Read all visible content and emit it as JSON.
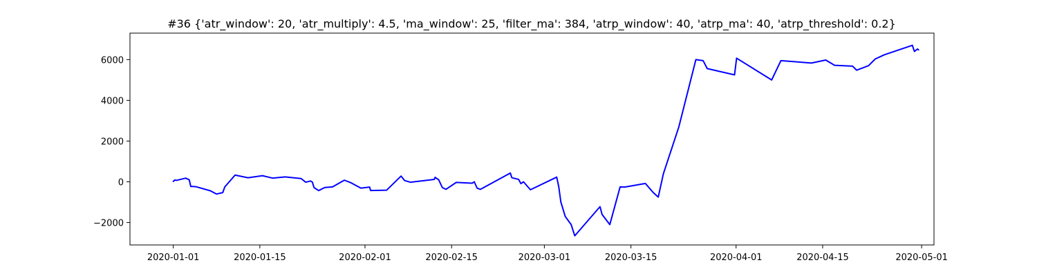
{
  "chart_data": {
    "type": "line",
    "title": "#36 {'atr_window': 20, 'atr_multiply': 4.5, 'ma_window': 25, 'filter_ma': 384, 'atrp_window': 40, 'atrp_ma': 40, 'atrp_threshold': 0.2}",
    "xlabel": "",
    "ylabel": "",
    "xlim": [
      "2019-12-25",
      "2020-05-03"
    ],
    "ylim": [
      -3100,
      7300
    ],
    "grid": false,
    "legend": "none",
    "xticks": [
      {
        "value": "2020-01-01",
        "label": "2020-01-01"
      },
      {
        "value": "2020-01-15",
        "label": "2020-01-15"
      },
      {
        "value": "2020-02-01",
        "label": "2020-02-01"
      },
      {
        "value": "2020-02-15",
        "label": "2020-02-15"
      },
      {
        "value": "2020-03-01",
        "label": "2020-03-01"
      },
      {
        "value": "2020-03-15",
        "label": "2020-03-15"
      },
      {
        "value": "2020-04-01",
        "label": "2020-04-01"
      },
      {
        "value": "2020-04-15",
        "label": "2020-04-15"
      },
      {
        "value": "2020-05-01",
        "label": "2020-05-01"
      }
    ],
    "yticks": [
      {
        "value": -2000,
        "label": "−2000"
      },
      {
        "value": 0,
        "label": "0"
      },
      {
        "value": 2000,
        "label": "2000"
      },
      {
        "value": 4000,
        "label": "4000"
      },
      {
        "value": 6000,
        "label": "6000"
      }
    ],
    "series": [
      {
        "color": "#0000ff",
        "x": [
          "2020-01-01 00:00",
          "2020-01-01 06:00",
          "2020-01-01 12:00",
          "2020-01-03 00:00",
          "2020-01-03 14:00",
          "2020-01-03 20:00",
          "2020-01-04 04:00",
          "2020-01-04 16:00",
          "2020-01-07 00:00",
          "2020-01-08 00:00",
          "2020-01-09 00:00",
          "2020-01-09 08:00",
          "2020-01-11 00:00",
          "2020-01-13 02:00",
          "2020-01-15 10:00",
          "2020-01-17 02:00",
          "2020-01-19 02:00",
          "2020-01-21 16:00",
          "2020-01-22 10:00",
          "2020-01-23 05:00",
          "2020-01-23 12:00",
          "2020-01-23 18:00",
          "2020-01-24 12:00",
          "2020-01-25 12:00",
          "2020-01-26 18:00",
          "2020-01-28 16:00",
          "2020-01-29 18:00",
          "2020-01-31 08:00",
          "2020-02-01 18:00",
          "2020-02-01 22:00",
          "2020-02-04 12:00",
          "2020-02-06 20:00",
          "2020-02-07 10:00",
          "2020-02-08 08:00",
          "2020-02-12 05:00",
          "2020-02-12 08:00",
          "2020-02-12 22:00",
          "2020-02-13 12:00",
          "2020-02-14 02:00",
          "2020-02-15 18:00",
          "2020-02-18 08:00",
          "2020-02-18 16:00",
          "2020-02-19 03:00",
          "2020-02-19 16:00",
          "2020-02-24 12:00",
          "2020-02-24 18:00",
          "2020-02-25 20:00",
          "2020-02-26 05:00",
          "2020-02-26 15:00",
          "2020-02-27 18:00",
          "2020-03-03 00:00",
          "2020-03-03 08:00",
          "2020-03-03 16:00",
          "2020-03-04 09:00",
          "2020-03-05 08:00",
          "2020-03-05 22:00",
          "2020-03-10 00:00",
          "2020-03-10 08:00",
          "2020-03-11 14:00",
          "2020-03-13 06:00",
          "2020-03-14 00:00",
          "2020-03-17 08:00",
          "2020-03-18 14:00",
          "2020-03-19 10:00",
          "2020-03-20 06:00",
          "2020-03-22 18:00",
          "2020-03-25 12:00",
          "2020-03-26 16:00",
          "2020-03-27 08:00",
          "2020-03-31 18:00",
          "2020-04-01 02:00",
          "2020-04-06 18:00",
          "2020-04-08 06:00",
          "2020-04-13 04:00",
          "2020-04-15 12:00",
          "2020-04-16 22:00",
          "2020-04-19 20:00",
          "2020-04-20 12:00",
          "2020-04-22 10:00",
          "2020-04-23 12:00",
          "2020-04-25 00:00",
          "2020-04-29 12:00",
          "2020-04-29 20:00",
          "2020-04-30 08:00",
          "2020-04-30 12:00"
        ],
        "y": [
          20,
          90,
          70,
          180,
          100,
          -230,
          -230,
          -240,
          -440,
          -600,
          -530,
          -250,
          330,
          200,
          300,
          180,
          240,
          160,
          -20,
          40,
          -20,
          -280,
          -430,
          -280,
          -250,
          80,
          -50,
          -310,
          -260,
          -430,
          -410,
          280,
          60,
          -20,
          120,
          220,
          100,
          -280,
          -370,
          -30,
          -70,
          0,
          -310,
          -370,
          430,
          200,
          120,
          -90,
          0,
          -390,
          230,
          -250,
          -990,
          -1700,
          -2100,
          -2650,
          -1220,
          -1600,
          -2100,
          -250,
          -260,
          -80,
          -520,
          -750,
          400,
          2700,
          6000,
          5950,
          5560,
          5250,
          6070,
          5000,
          5950,
          5830,
          5980,
          5720,
          5680,
          5480,
          5700,
          6030,
          6240,
          6700,
          6400,
          6520,
          6480
        ]
      }
    ]
  }
}
